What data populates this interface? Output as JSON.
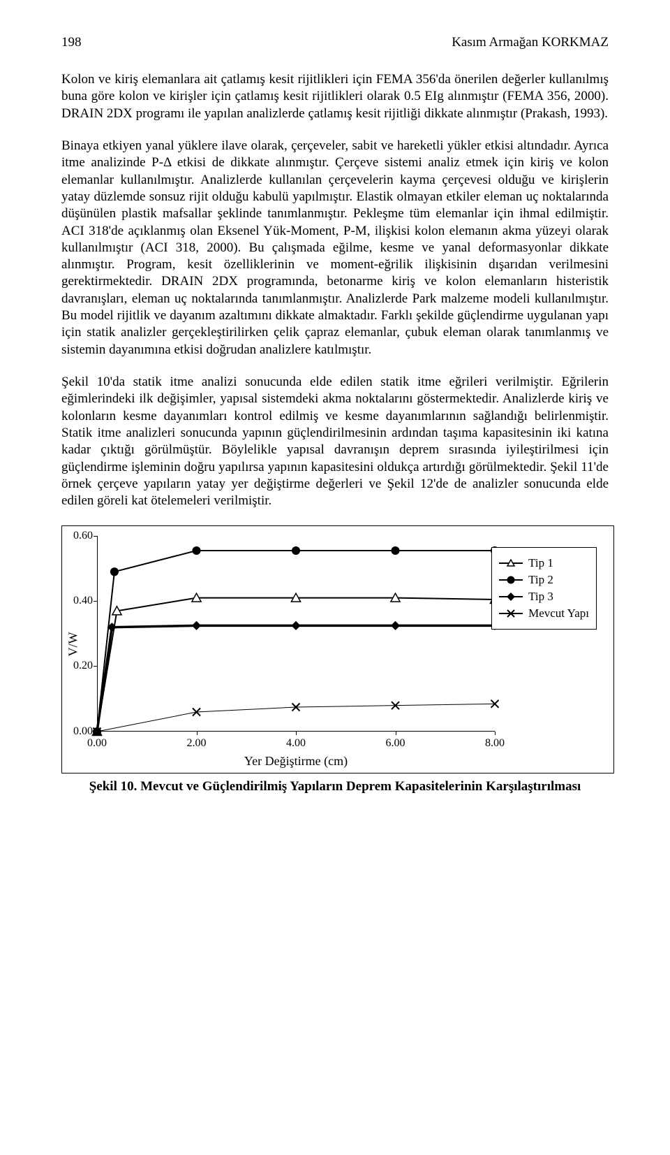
{
  "header": {
    "page_no": "198",
    "author": "Kasım Armağan KORKMAZ"
  },
  "paragraphs": {
    "p1": "Kolon ve kiriş elemanlara ait çatlamış kesit rijitlikleri için FEMA 356'da önerilen değerler kullanılmış buna göre kolon ve kirişler için çatlamış kesit rijitlikleri olarak 0.5 EIg alınmıştır (FEMA 356, 2000). DRAIN 2DX programı ile yapılan analizlerde çatlamış kesit rijitliği dikkate alınmıştır (Prakash, 1993).",
    "p2": "Binaya etkiyen yanal yüklere ilave olarak, çerçeveler, sabit ve hareketli yükler etkisi altındadır. Ayrıca itme analizinde P-Δ etkisi de dikkate alınmıştır. Çerçeve sistemi analiz etmek için kiriş ve kolon elemanlar kullanılmıştır. Analizlerde kullanılan çerçevelerin kayma çerçevesi olduğu ve kirişlerin yatay düzlemde sonsuz rijit olduğu kabulü yapılmıştır. Elastik olmayan etkiler eleman uç noktalarında düşünülen plastik mafsallar şeklinde tanımlanmıştır. Pekleşme tüm elemanlar için ihmal edilmiştir. ACI 318'de açıklanmış olan Eksenel Yük-Moment, P-M, ilişkisi kolon elemanın akma yüzeyi olarak kullanılmıştır (ACI 318, 2000). Bu çalışmada eğilme, kesme ve yanal deformasyonlar dikkate alınmıştır. Program, kesit özelliklerinin ve moment-eğrilik ilişkisinin dışarıdan verilmesini gerektirmektedir. DRAIN 2DX programında, betonarme kiriş ve kolon elemanların histeristik davranışları, eleman uç noktalarında tanımlanmıştır. Analizlerde Park malzeme modeli kullanılmıştır. Bu model rijitlik ve dayanım azaltımını dikkate almaktadır. Farklı şekilde güçlendirme uygulanan yapı için statik analizler gerçekleştirilirken çelik çapraz elemanlar, çubuk eleman olarak tanımlanmış ve sistemin dayanımına etkisi doğrudan analizlere katılmıştır.",
    "p3": "Şekil 10'da statik itme analizi sonucunda elde edilen statik itme eğrileri verilmiştir. Eğrilerin eğimlerindeki ilk değişimler, yapısal sistemdeki akma noktalarını göstermektedir. Analizlerde kiriş ve kolonların kesme dayanımları kontrol edilmiş ve kesme dayanımlarının sağlandığı belirlenmiştir. Statik itme analizleri sonucunda yapının güçlendirilmesinin ardından taşıma kapasitesinin iki katına kadar çıktığı görülmüştür. Böylelikle yapısal davranışın deprem sırasında iyileştirilmesi için güçlendirme işleminin doğru yapılırsa yapının kapasitesini oldukça artırdığı görülmektedir. Şekil 11'de örnek çerçeve yapıların yatay yer değiştirme değerleri ve Şekil 12'de de analizler sonucunda elde edilen göreli kat ötelemeleri verilmiştir."
  },
  "chart": {
    "type": "line-scatter",
    "xlabel": "Yer Değiştirme (cm)",
    "ylabel": "V/W",
    "xlim": [
      0,
      8
    ],
    "ylim": [
      0,
      0.6
    ],
    "xticks": [
      0,
      2,
      4,
      6,
      8
    ],
    "xtick_labels": [
      "0.00",
      "2.00",
      "4.00",
      "6.00",
      "8.00"
    ],
    "yticks": [
      0,
      0.2,
      0.4,
      0.6
    ],
    "ytick_labels": [
      "0.00",
      "0.20",
      "0.40",
      "0.60"
    ],
    "series": {
      "tip1": {
        "label": "Tip 1",
        "marker": "triangle",
        "line": true,
        "line_width": 2,
        "x": [
          0,
          0.4,
          2,
          4,
          6,
          8
        ],
        "y": [
          0,
          0.37,
          0.41,
          0.41,
          0.41,
          0.405
        ]
      },
      "tip2": {
        "label": "Tip 2",
        "marker": "circle",
        "line": true,
        "line_width": 2,
        "x": [
          0,
          0.35,
          2,
          4,
          6,
          8
        ],
        "y": [
          0,
          0.49,
          0.555,
          0.555,
          0.555,
          0.555
        ]
      },
      "tip3": {
        "label": "Tip 3",
        "marker": "diamond",
        "line": true,
        "line_width": 3.5,
        "x": [
          0,
          0.3,
          2,
          4,
          6,
          8
        ],
        "y": [
          0,
          0.32,
          0.325,
          0.325,
          0.325,
          0.325
        ]
      },
      "mevcut": {
        "label": "Mevcut Yapı",
        "marker": "x",
        "line": true,
        "line_width": 1,
        "x": [
          0,
          2,
          4,
          6,
          8
        ],
        "y": [
          0,
          0.06,
          0.075,
          0.08,
          0.085
        ]
      }
    },
    "colors": {
      "stroke": "#000000",
      "bg": "#ffffff"
    },
    "marker_size": 11,
    "caption": "Şekil 10. Mevcut ve Güçlendirilmiş Yapıların Deprem Kapasitelerinin Karşılaştırılması"
  }
}
